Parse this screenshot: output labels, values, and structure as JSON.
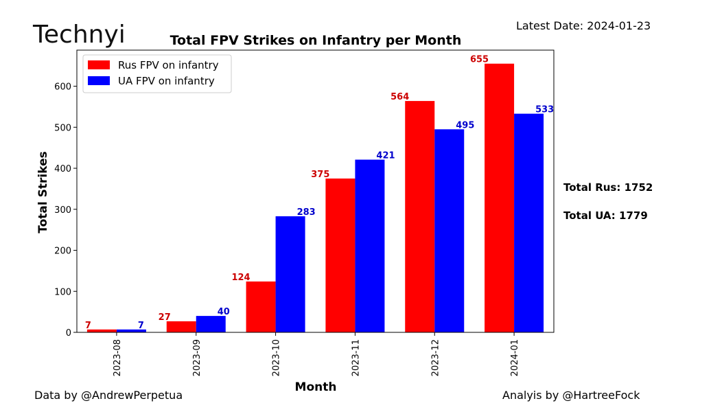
{
  "logo_text": "Technyi",
  "latest_date": "Latest Date: 2024-01-23",
  "footer": {
    "left": "Data by @AndrewPerpetua",
    "right": "Analyis by @HartreeFock"
  },
  "totals": {
    "rus": "Total Rus: 1752",
    "ua": "Total UA: 1779"
  },
  "colors": {
    "rus": "#ff0000",
    "ua": "#0000ff",
    "rus_label": "#cc0000",
    "ua_label": "#0000cc"
  },
  "chart_data": {
    "type": "bar",
    "title": "Total FPV Strikes on Infantry per Month",
    "xlabel": "Month",
    "ylabel": "Total Strikes",
    "categories": [
      "2023-08",
      "2023-09",
      "2023-10",
      "2023-11",
      "2023-12",
      "2024-01"
    ],
    "series": [
      {
        "name": "Rus FPV on infantry",
        "values": [
          7,
          27,
          124,
          375,
          564,
          655
        ]
      },
      {
        "name": "UA FPV on infantry",
        "values": [
          7,
          40,
          283,
          421,
          495,
          533
        ]
      }
    ],
    "yticks": [
      0,
      100,
      200,
      300,
      400,
      500,
      600
    ],
    "ylim": [
      0,
      688
    ],
    "legend": "top-left",
    "grid": false
  }
}
